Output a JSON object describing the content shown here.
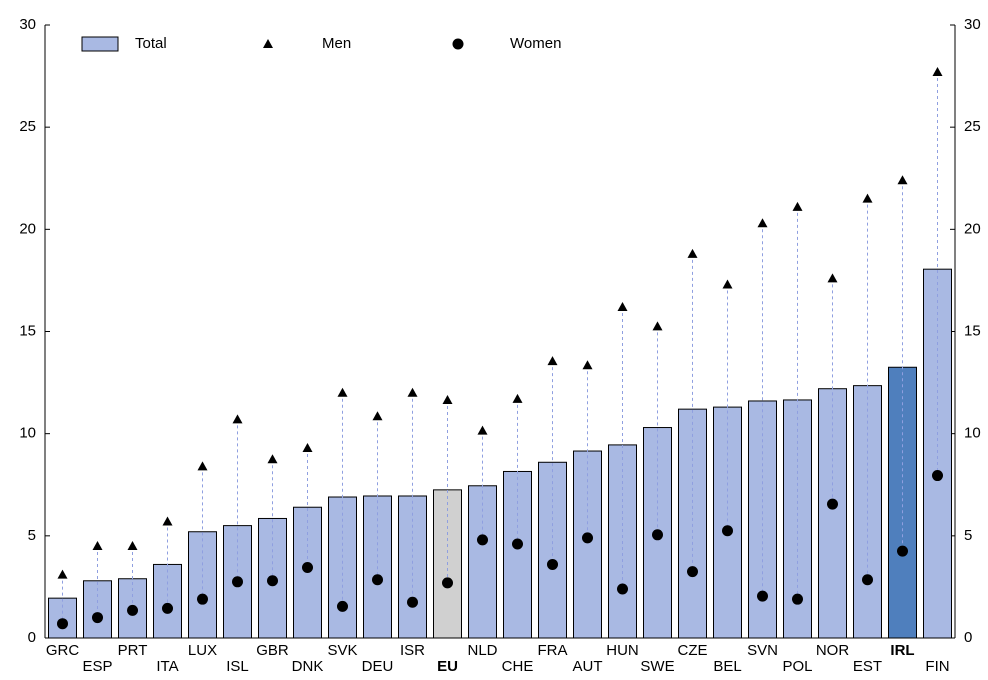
{
  "chart_data": {
    "type": "bar",
    "categories": [
      "GRC",
      "ESP",
      "PRT",
      "ITA",
      "LUX",
      "ISL",
      "GBR",
      "DNK",
      "SVK",
      "DEU",
      "ISR",
      "EU",
      "NLD",
      "CHE",
      "FRA",
      "AUT",
      "HUN",
      "SWE",
      "CZE",
      "BEL",
      "SVN",
      "POL",
      "NOR",
      "EST",
      "IRL",
      "FIN"
    ],
    "series": [
      {
        "name": "Total",
        "color": "#a9b9e3",
        "colors": [
          "#a9b9e3",
          "#a9b9e3",
          "#a9b9e3",
          "#a9b9e3",
          "#a9b9e3",
          "#a9b9e3",
          "#a9b9e3",
          "#a9b9e3",
          "#a9b9e3",
          "#a9b9e3",
          "#a9b9e3",
          "#d0d0d0",
          "#a9b9e3",
          "#a9b9e3",
          "#a9b9e3",
          "#a9b9e3",
          "#a9b9e3",
          "#a9b9e3",
          "#a9b9e3",
          "#a9b9e3",
          "#a9b9e3",
          "#a9b9e3",
          "#a9b9e3",
          "#a9b9e3",
          "#4f7fbd",
          "#a9b9e3"
        ],
        "values": [
          1.95,
          2.8,
          2.9,
          3.6,
          5.2,
          5.5,
          5.85,
          6.4,
          6.9,
          6.95,
          6.95,
          7.25,
          7.45,
          8.15,
          8.6,
          9.15,
          9.45,
          10.3,
          11.2,
          11.3,
          11.6,
          11.65,
          12.2,
          12.35,
          13.25,
          18.05
        ]
      },
      {
        "name": "Men",
        "color": "#000000",
        "marker": "triangle",
        "values": [
          3.1,
          4.5,
          4.5,
          5.7,
          8.4,
          10.7,
          8.75,
          9.3,
          12.0,
          10.85,
          12.0,
          11.65,
          10.15,
          11.7,
          13.55,
          13.35,
          16.2,
          15.25,
          18.8,
          17.3,
          20.3,
          21.1,
          17.6,
          21.5,
          22.4,
          27.7
        ]
      },
      {
        "name": "Women",
        "color": "#000000",
        "marker": "circle",
        "values": [
          0.7,
          1.0,
          1.35,
          1.45,
          1.9,
          2.75,
          2.8,
          3.45,
          1.55,
          2.85,
          1.75,
          2.7,
          4.8,
          4.6,
          3.6,
          4.9,
          2.4,
          5.05,
          3.25,
          5.25,
          2.05,
          1.9,
          6.55,
          2.85,
          4.25,
          7.95
        ]
      }
    ],
    "ylim": [
      0,
      30
    ],
    "yticks": [
      0,
      5,
      10,
      15,
      20,
      25,
      30
    ],
    "y2lim": [
      0,
      30
    ],
    "y2ticks": [
      0,
      5,
      10,
      15,
      20,
      25,
      30
    ],
    "grid": false,
    "legend": "top-left"
  }
}
